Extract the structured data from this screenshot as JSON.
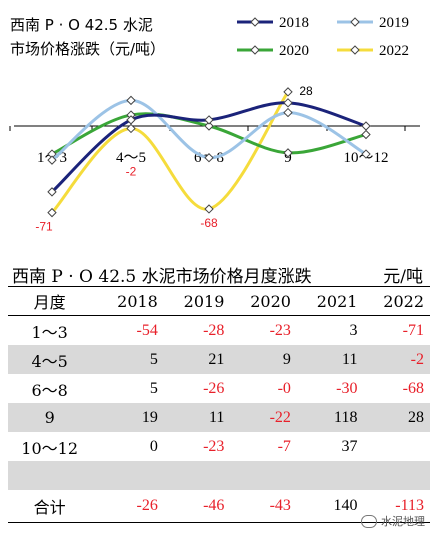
{
  "chart_data": {
    "type": "line",
    "title_line1": "西南 P · O 42.5 水泥",
    "title_line2": "市场价格涨跌（元/吨）",
    "categories": [
      "1～3",
      "4～5",
      "6～8",
      "9",
      "10～12"
    ],
    "series": [
      {
        "name": "2018",
        "color": "#1b237a",
        "values": [
          -54,
          5,
          5,
          19,
          0
        ]
      },
      {
        "name": "2019",
        "color": "#9cc3e6",
        "values": [
          -28,
          21,
          -26,
          11,
          -23
        ]
      },
      {
        "name": "2020",
        "color": "#3aa638",
        "values": [
          -23,
          9,
          0,
          -22,
          -7
        ]
      },
      {
        "name": "2022",
        "color": "#f5dc3c",
        "values": [
          -71,
          -2,
          -68,
          28,
          null
        ]
      }
    ],
    "data_labels": [
      {
        "text": "-71",
        "color": "#e8202a"
      },
      {
        "text": "-2",
        "color": "#e8202a"
      },
      {
        "text": "-68",
        "color": "#e8202a"
      },
      {
        "text": "28",
        "color": "#000000"
      }
    ],
    "legend_placement": "top-right",
    "grid": false
  },
  "table": {
    "title": "西南 P · O 42.5 水泥市场价格月度涨跌",
    "unit": "元/吨",
    "headers": [
      "月度",
      "2018",
      "2019",
      "2020",
      "2021",
      "2022"
    ],
    "rows": [
      {
        "month": "1～3",
        "values": [
          "-54",
          "-28",
          "-23",
          "3",
          "-71"
        ]
      },
      {
        "month": "4～5",
        "values": [
          "5",
          "21",
          "9",
          "11",
          "-2"
        ]
      },
      {
        "month": "6～8",
        "values": [
          "5",
          "-26",
          "-0",
          "-30",
          "-68"
        ]
      },
      {
        "month": "9",
        "values": [
          "19",
          "11",
          "-22",
          "118",
          "28"
        ]
      },
      {
        "month": "10～12",
        "values": [
          "0",
          "-23",
          "-7",
          "37",
          ""
        ]
      },
      {
        "month": "",
        "values": [
          "",
          "",
          "",
          "",
          ""
        ]
      }
    ],
    "total": {
      "label": "合计",
      "values": [
        "-26",
        "-46",
        "-43",
        "140",
        "-113"
      ]
    }
  },
  "watermark": "水泥地理",
  "negative_color": "#e8202a"
}
